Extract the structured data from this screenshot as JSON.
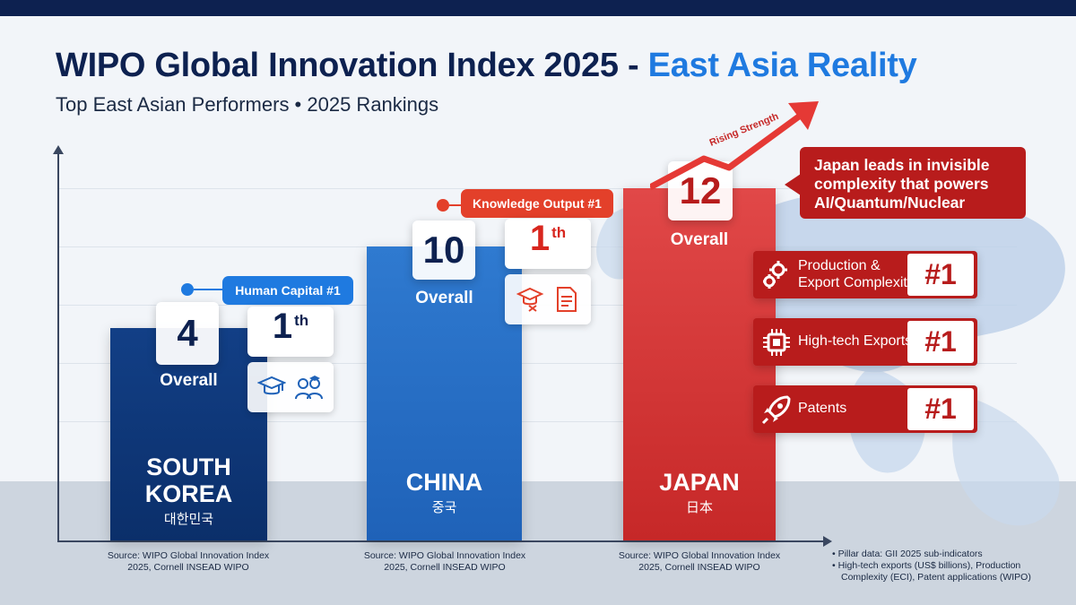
{
  "header": {
    "title_main": "WIPO Global Innovation Index 2025 -",
    "title_accent": "East Asia Reality",
    "subtitle": "Top East Asian Performers • 2025 Rankings"
  },
  "colors": {
    "navy": "#0d2150",
    "blue_accent": "#1f7ae0",
    "korea_bar": "#0b2f6a",
    "china_bar": "#2f7ad0",
    "japan_bar": "#d32f2f",
    "red_dark": "#b81c1c"
  },
  "chart_data": {
    "type": "bar",
    "title": "WIPO Global Innovation Index 2025 - East Asia Reality",
    "subtitle": "Top East Asian Performers • 2025 Rankings",
    "categories": [
      "SOUTH KOREA",
      "CHINA",
      "JAPAN"
    ],
    "native_names": [
      "대한민국",
      "중국",
      "日本"
    ],
    "values": [
      4,
      10,
      12
    ],
    "value_label": "Overall",
    "xlabel": "",
    "ylabel": "",
    "ylim": [
      0,
      13
    ],
    "grid": true,
    "pillar_highlights": [
      {
        "country": "SOUTH KOREA",
        "pillar": "Human Capital #1",
        "rank_num": "1",
        "rank_suffix": "th"
      },
      {
        "country": "CHINA",
        "pillar": "Knowledge Output #1",
        "rank_num": "1",
        "rank_suffix": "th"
      }
    ],
    "japan_callout": "Japan leads in invisible complexity that powers AI/Quantum/Nuclear",
    "japan_arrow_label": "Rising Strength",
    "japan_features": [
      {
        "label": "Production & Export Complexity",
        "rank": "#1",
        "icon": "gears-icon"
      },
      {
        "label": "High-tech Exports",
        "rank": "#1",
        "icon": "chip-icon"
      },
      {
        "label": "Patents",
        "rank": "#1",
        "icon": "rocket-icon"
      }
    ],
    "sources": [
      "Source: WIPO Global Innovation Index 2025, Cornell INSEAD WIPO",
      "Source: WIPO Global Innovation Index 2025, Cornell INSEAD WIPO",
      "Source: WIPO Global Innovation Index 2025, Cornell INSEAD WIPO"
    ],
    "notes": [
      "• Pillar data: GII 2025 sub-indicators",
      "• High-tech exports (US$ billions), Production",
      "Complexity (ECI), Patent applications (WIPO)"
    ]
  }
}
